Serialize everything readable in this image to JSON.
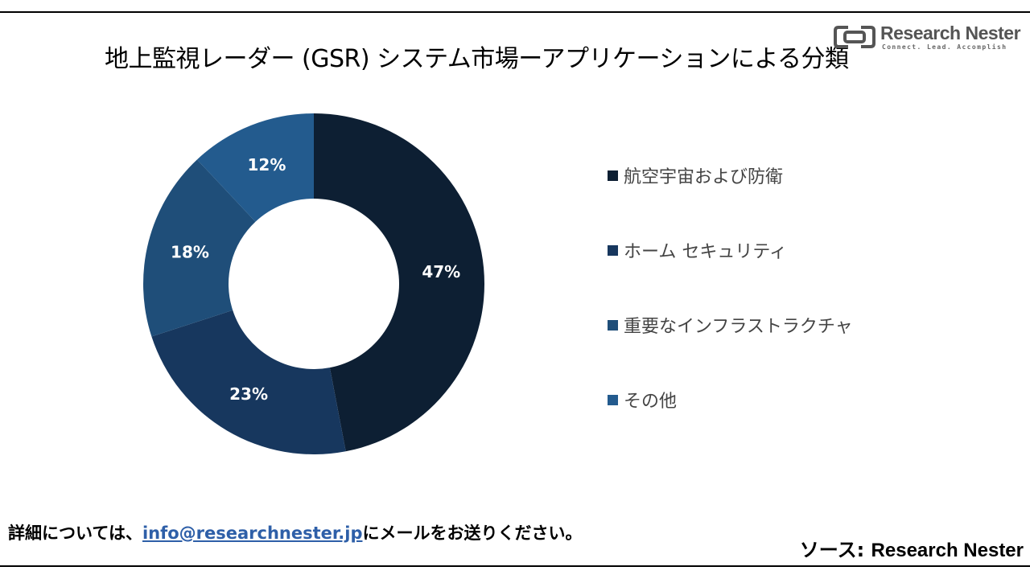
{
  "title": "地上監視レーダー (GSR) システム市場ーアプリケーションによる分類",
  "logo": {
    "name": "Research Nester",
    "tagline": "Connect. Lead. Accomplish"
  },
  "colors": {
    "text": "#000000",
    "legend_text": "#444444",
    "link": "#2e5fa8",
    "slice_label": "#ffffff"
  },
  "chart_data": {
    "type": "pie",
    "donut": true,
    "title": "地上監視レーダー (GSR) システム市場ーアプリケーションによる分類",
    "categories": [
      "航空宇宙および防衛",
      "ホーム セキュリティ",
      "重要なインフラストラクチャ",
      "その他"
    ],
    "values": [
      47,
      23,
      18,
      12
    ],
    "labels": [
      "47%",
      "23%",
      "18%",
      "12%"
    ],
    "colors": [
      "#0d1f33",
      "#17375e",
      "#1f4e79",
      "#235b8e"
    ],
    "legend_position": "right"
  },
  "footer": {
    "prefix": "詳細については、",
    "email": "info@researchnester.jp",
    "suffix": "にメールをお送りください。"
  },
  "source": {
    "prefix": "ソース: ",
    "name": "Research Nester"
  }
}
